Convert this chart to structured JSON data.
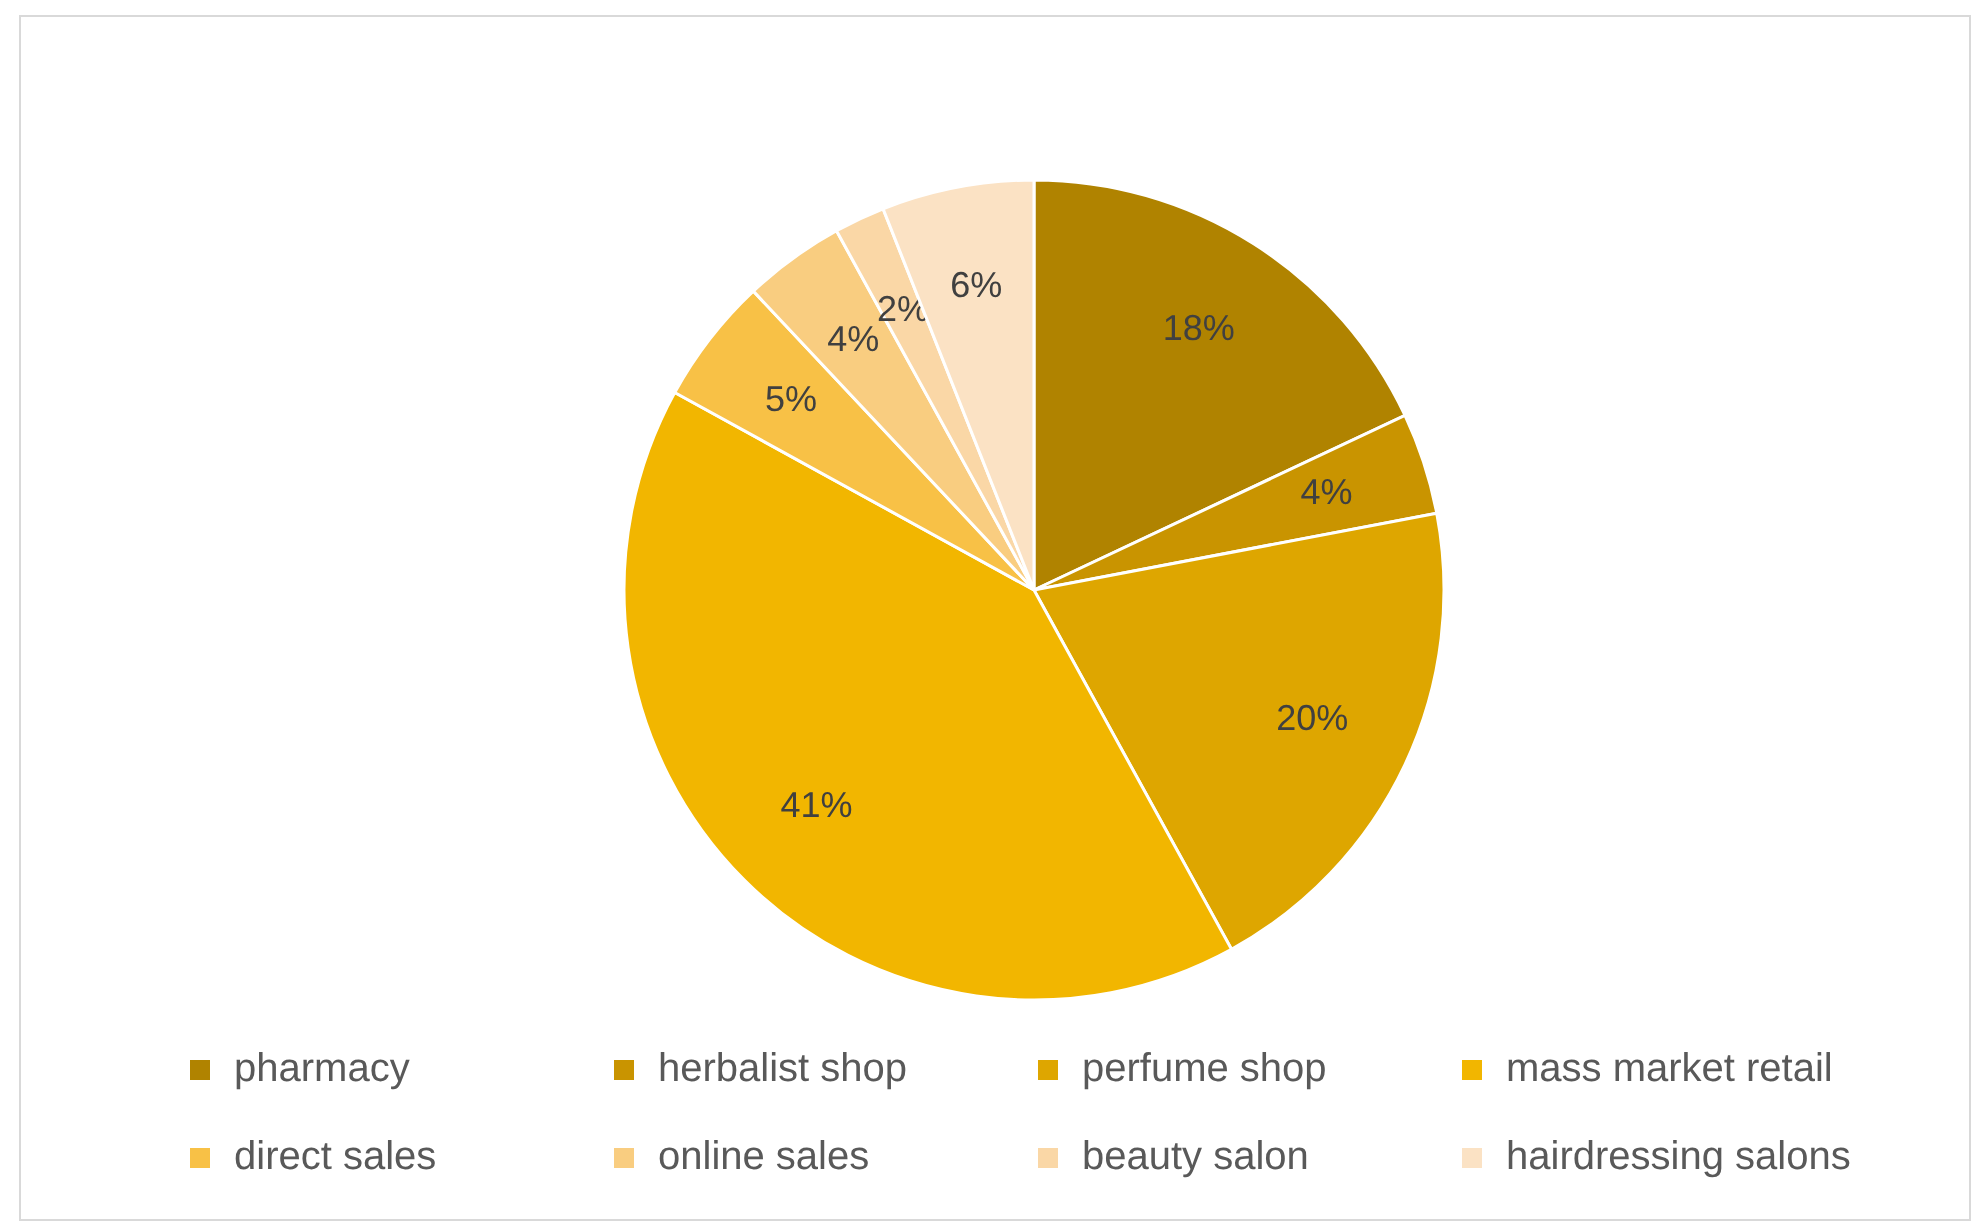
{
  "chart_data": {
    "type": "pie",
    "categories": [
      "pharmacy",
      "herbalist shop",
      "perfume shop",
      "mass market retail",
      "direct sales",
      "online sales",
      "beauty salon",
      "hairdressing salons"
    ],
    "values": [
      18,
      4,
      20,
      41,
      5,
      4,
      2,
      6
    ],
    "colors": [
      "#b08300",
      "#c99400",
      "#dea600",
      "#f2b600",
      "#f8c146",
      "#f9cd80",
      "#fad7a6",
      "#fbe2c4"
    ],
    "value_labels": [
      "18%",
      "4%",
      "20%",
      "41%",
      "5%",
      "4%",
      "2%",
      "6%"
    ],
    "legend": "bottom"
  }
}
